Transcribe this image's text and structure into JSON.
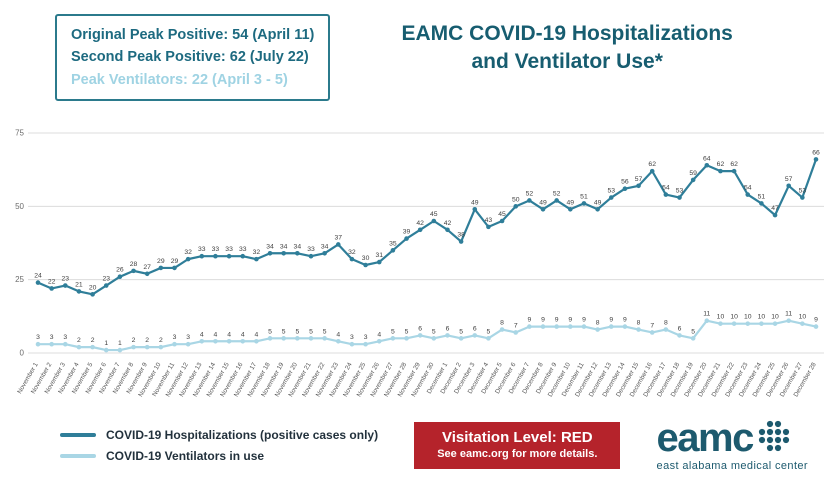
{
  "stats_box": {
    "line1": "Original Peak Positive: 54 (April 11)",
    "line2": "Second Peak Positive: 62 (July 22)",
    "line3": "Peak Ventilators: 22 (April 3 - 5)"
  },
  "title": {
    "line1": "EAMC COVID-19 Hospitalizations",
    "line2": "and Ventilator Use*"
  },
  "chart_data": {
    "type": "line",
    "title": "EAMC COVID-19 Hospitalizations and Ventilator Use*",
    "xlabel": "",
    "ylabel": "",
    "ylim": [
      0,
      75
    ],
    "yticks": [
      0,
      25,
      50,
      75
    ],
    "grid": true,
    "legend_position": "bottom-left",
    "x": [
      "November 1",
      "November 2",
      "November 3",
      "November 4",
      "November 5",
      "November 6",
      "November 7",
      "November 8",
      "November 9",
      "November 10",
      "November 11",
      "November 12",
      "November 13",
      "November 14",
      "November 15",
      "November 16",
      "November 17",
      "November 18",
      "November 19",
      "November 20",
      "November 21",
      "November 22",
      "November 23",
      "November 24",
      "November 25",
      "November 26",
      "November 27",
      "November 28",
      "November 29",
      "November 30",
      "December 1",
      "December 2",
      "December 3",
      "December 4",
      "December 5",
      "December 6",
      "December 7",
      "December 8",
      "December 9",
      "December 10",
      "December 11",
      "December 12",
      "December 13",
      "December 14",
      "December 15",
      "December 16",
      "December 17",
      "December 18",
      "December 19",
      "December 20",
      "December 21",
      "December 22",
      "December 23",
      "December 24",
      "December 25",
      "December 26",
      "December 27",
      "December 28"
    ],
    "series": [
      {
        "name": "COVID-19 Hospitalizations (positive cases only)",
        "color": "#2f7e99",
        "values": [
          24,
          22,
          23,
          21,
          20,
          23,
          26,
          28,
          27,
          29,
          29,
          32,
          33,
          33,
          33,
          33,
          32,
          34,
          34,
          34,
          33,
          34,
          37,
          32,
          30,
          31,
          35,
          39,
          42,
          45,
          42,
          38,
          49,
          43,
          45,
          50,
          52,
          49,
          52,
          49,
          51,
          49,
          53,
          56,
          57,
          62,
          54,
          53,
          59,
          64,
          62,
          62,
          54,
          51,
          47,
          57,
          53,
          66
        ]
      },
      {
        "name": "COVID-19 Ventilators in use",
        "color": "#a9d6e5",
        "values": [
          3,
          3,
          3,
          2,
          2,
          1,
          1,
          2,
          2,
          2,
          3,
          3,
          4,
          4,
          4,
          4,
          4,
          5,
          5,
          5,
          5,
          5,
          4,
          3,
          3,
          4,
          5,
          5,
          6,
          5,
          6,
          5,
          6,
          5,
          8,
          7,
          9,
          9,
          9,
          9,
          9,
          8,
          9,
          9,
          8,
          7,
          8,
          6,
          5,
          11,
          10,
          10,
          10,
          10,
          10,
          11,
          10,
          9
        ]
      }
    ]
  },
  "visitation": {
    "line1": "Visitation Level: RED",
    "line2": "See eamc.org for more details."
  },
  "logo": {
    "name": "eamc",
    "tagline": "east alabama medical center"
  },
  "colors": {
    "accent_dark_teal": "#175d70",
    "accent_light_blue": "#9fd3e3",
    "visitation_red": "#b5232b"
  }
}
